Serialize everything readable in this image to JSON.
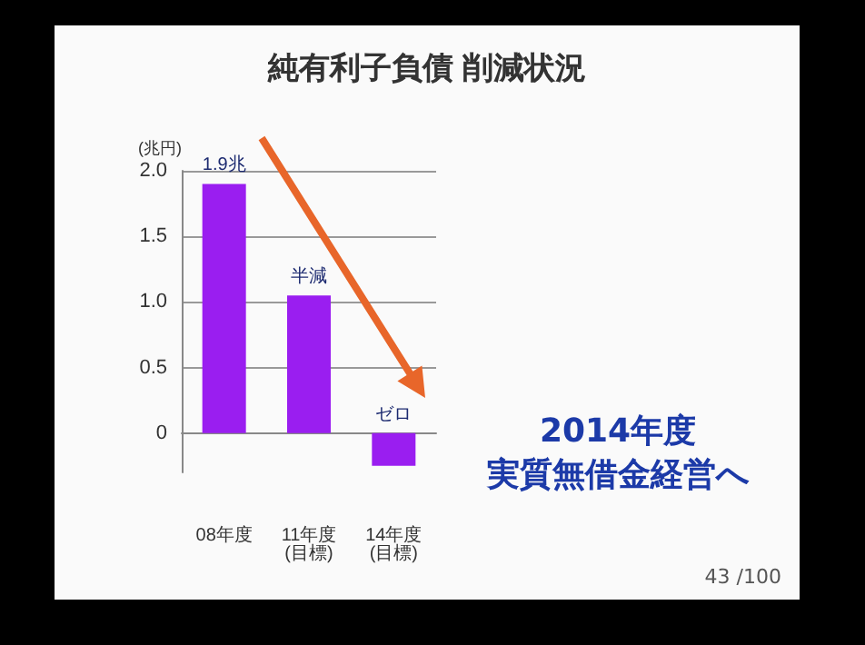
{
  "chart_data": {
    "type": "bar",
    "title": "純有利子負債 削減状況",
    "ylabel": "(兆円)",
    "categories": [
      "08年度",
      "11年度\n(目標)",
      "14年度\n(目標)"
    ],
    "values": [
      1.9,
      1.05,
      -0.25
    ],
    "color": "#9a1ef0",
    "value_labels": [
      "1.9兆",
      "半減",
      "ゼロ"
    ],
    "ylim": [
      -0.3,
      2
    ],
    "yticks": [
      0,
      0.5,
      {
        "value": 1,
        "label": "1.0"
      },
      1.5,
      {
        "value": 2,
        "label": "2.0"
      }
    ],
    "grid": "y",
    "annotations": [
      "2014年度",
      "実質無借金経営へ",
      "43 /100"
    ]
  }
}
